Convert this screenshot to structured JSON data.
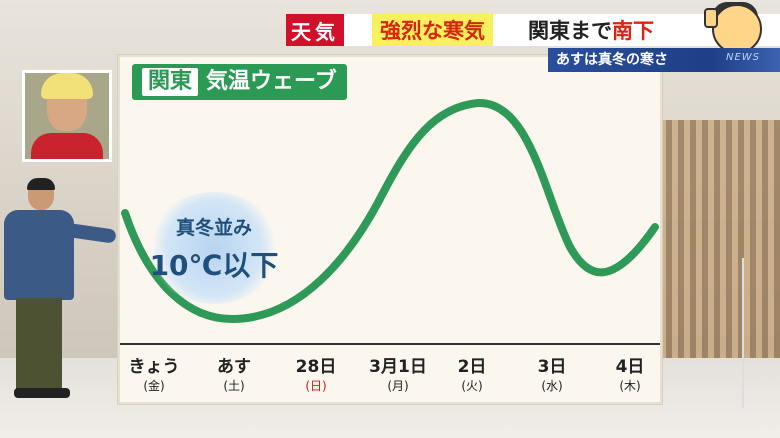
{
  "header": {
    "weather_tag": "天気",
    "headline_highlight": "強烈な寒気",
    "headline_rest_black": "関東まで",
    "headline_rest_red": "南下",
    "subheadline": "あすは真冬の寒さ",
    "news_mark": "NEWS"
  },
  "board": {
    "region": "関東",
    "title": "気温ウェーブ",
    "badge_line1": "真冬並み",
    "badge_line2": "10℃以下",
    "wave_color": "#2f9a57",
    "ticks": [
      {
        "day": "きょう",
        "dow": "(金)",
        "kind": "weekday"
      },
      {
        "day": "あす",
        "dow": "(土)",
        "kind": "saturday"
      },
      {
        "day": "28日",
        "dow": "(日)",
        "kind": "sunday"
      },
      {
        "day": "3月1日",
        "dow": "(月)",
        "kind": "weekday"
      },
      {
        "day": "2日",
        "dow": "(火)",
        "kind": "weekday"
      },
      {
        "day": "3日",
        "dow": "(水)",
        "kind": "weekday"
      },
      {
        "day": "4日",
        "dow": "(木)",
        "kind": "weekday"
      }
    ]
  },
  "colors": {
    "accent_red": "#d2102a",
    "headline_yellow": "#f8f05c",
    "sub_band_blue": "#1e3f86",
    "board_green": "#2b9a55",
    "badge_text": "#1f4f7a",
    "sunday_red": "#d01a1a"
  }
}
